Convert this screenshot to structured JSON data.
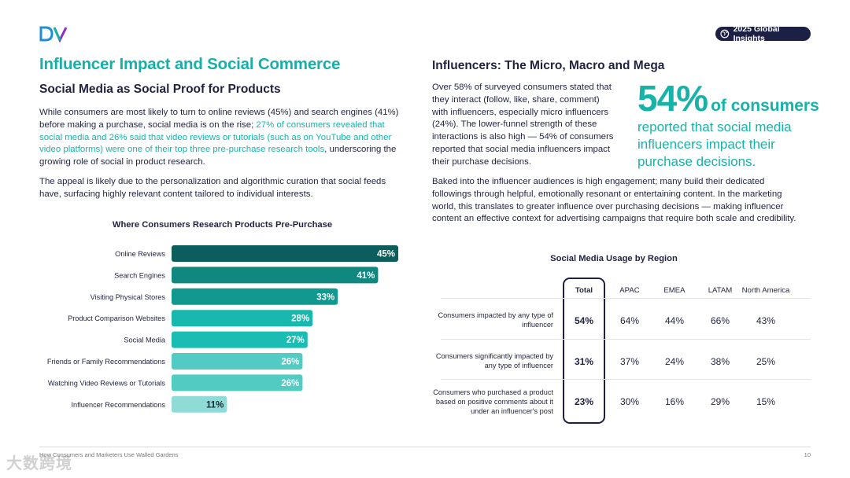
{
  "header": {
    "logo_text": "DV",
    "badge_label": "2025 Global Insights"
  },
  "left": {
    "page_title": "Influencer Impact and Social Commerce",
    "section_title": "Social Media as Social Proof for Products",
    "para1_a": "While consumers are most likely to turn to online reviews (45%) and search engines (41%) before making a purchase, social media is on the rise; ",
    "para1_b": "27% of consumers revealed that social media and 26% said that video reviews or tutorials (such as on YouTube and other video platforms) were one of their top three pre-purchase research tools",
    "para1_c": ", underscoring the growing role of social in product research.",
    "para2": "The appeal is likely due to the personalization and algorithmic curation that social feeds have, surfacing highly relevant content tailored to individual interests."
  },
  "chart_data": {
    "type": "bar",
    "orientation": "horizontal",
    "title": "Where Consumers Research Products Pre-Purchase",
    "categories": [
      "Online Reviews",
      "Search Engines",
      "Visiting Physical Stores",
      "Product Comparison Websites",
      "Social Media",
      "Friends or Family Recommendations",
      "Watching Video Reviews or Tutorials",
      "Influencer Recommendations"
    ],
    "values": [
      45,
      41,
      33,
      28,
      27,
      26,
      26,
      11
    ],
    "value_labels": [
      "45%",
      "41%",
      "33%",
      "28%",
      "27%",
      "26%",
      "26%",
      "11%"
    ],
    "colors": [
      "#0b5e5c",
      "#10877f",
      "#12998f",
      "#19b8ae",
      "#1bbcb1",
      "#52cbc3",
      "#52cbc3",
      "#8fdcd6"
    ],
    "xlim": [
      0,
      50
    ]
  },
  "right": {
    "title": "Influencers: The Micro, Macro and Mega",
    "para1": "Over 58% of surveyed consumers stated that they interact (follow, like, share, comment) with influencers, especially micro influencers (24%). The lower-funnel strength of these interactions is also high — 54% of consumers reported that social media influencers impact their purchase decisions.",
    "stat_pct": "54%",
    "stat_of": "of consumers",
    "stat_text": "reported that social media influencers impact their purchase decisions.",
    "para2": "Baked into the influencer audiences is high engagement; many build their dedicated followings through helpful, emotionally resonant or entertaining content. In the marketing world, this translates to greater influence over purchasing decisions — making influencer content an effective context for advertising campaigns that require both scale and credibility."
  },
  "table": {
    "title": "Social Media Usage by Region",
    "columns": [
      "Total",
      "APAC",
      "EMEA",
      "LATAM",
      "North America"
    ],
    "rows": [
      {
        "label": "Consumers impacted by any type of influencer",
        "values": [
          "54%",
          "64%",
          "44%",
          "66%",
          "43%"
        ]
      },
      {
        "label": "Consumers significantly impacted by any type of influencer",
        "values": [
          "31%",
          "37%",
          "24%",
          "38%",
          "25%"
        ]
      },
      {
        "label": "Consumers who purchased a product based on positive comments about it under an influencer's post",
        "values": [
          "23%",
          "30%",
          "16%",
          "29%",
          "15%"
        ]
      }
    ]
  },
  "footer": {
    "text": "How Consumers and Marketers Use Walled Gardens",
    "page": "10",
    "watermark": "大数跨境"
  },
  "colors": {
    "accent": "#17b3a9",
    "navy": "#1c2044"
  }
}
